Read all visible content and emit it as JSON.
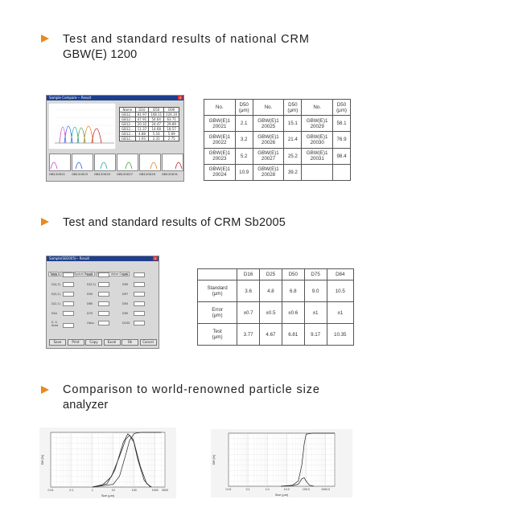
{
  "sections": [
    {
      "title_line1": "Test and standard results of national CRM",
      "title_line2": "GBW(E) 1200"
    },
    {
      "title_line1": "Test and standard results of CRM Sb2005"
    },
    {
      "title_line1": "Comparison to world-renowned particle size",
      "title_line2": "analyzer"
    }
  ],
  "compare_window": {
    "title": "Sample Compare -- Result",
    "table_headers": [
      "Name",
      "D10",
      "D50",
      "D90"
    ],
    "rows": [
      [
        "GB12...",
        "81.97",
        "108.11",
        "126.10"
      ],
      [
        "GB12...",
        "47.91",
        "54.64",
        "63.71"
      ],
      [
        "GB12...",
        "20.32",
        "24.47",
        "29.89"
      ],
      [
        "GB12...",
        "11.37",
        "14.68",
        "18.57"
      ],
      [
        "GB12...",
        "4.88",
        "5.16",
        "5.69"
      ],
      [
        "GB12...",
        "1.93",
        "2.31",
        "2.75"
      ]
    ],
    "thumbnails": [
      "GB120021",
      "GB120023",
      "GB120025",
      "GB120027",
      "GB120029",
      "GB120031"
    ]
  },
  "gbw_table": {
    "headers": [
      "No.",
      "D50\n(μm)",
      "No.",
      "D50\n(μm)",
      "No.",
      "D50\n(μm)"
    ],
    "rows": [
      [
        "GBW(E)1\n20021",
        "2.1",
        "GBW(E)1\n20025",
        "15.1",
        "GBW(E)1\n20029",
        "58.1"
      ],
      [
        "GBW(E)1\n20022",
        "3.2",
        "GBW(E)1\n20026",
        "21.4",
        "GBW(E)1\n20030",
        "76.9"
      ],
      [
        "GBW(E)1\n20023",
        "5.2",
        "GBW(E)1\n20027",
        "25.2",
        "GBW(E)1\n20031",
        "98.4"
      ],
      [
        "GBW(E)1\n20024",
        "10.9",
        "GBW(E)1\n20028",
        "39.2",
        "",
        ""
      ]
    ]
  },
  "sb_window": {
    "title": "Sample(SB2005)-- Result",
    "tabs": [
      "Table",
      "Graph",
      "Typical Result",
      "Residual, Value Graph"
    ],
    "buttons": [
      "Save",
      "Print",
      "Copy",
      "Excel",
      "Ok",
      "Cancel"
    ],
    "fields": [
      [
        "D10",
        "D25",
        "D75"
      ],
      [
        "D(4,3)",
        "D(3,2)",
        "D90"
      ],
      [
        "D(3,2)",
        "D50",
        "D97"
      ],
      [
        "D(2,1)",
        "D60",
        "D50"
      ],
      [
        "SSA",
        "D70",
        "D90"
      ],
      [
        "S. S. Area",
        "Obsc.",
        "D100"
      ]
    ]
  },
  "sb_table": {
    "headers": [
      "",
      "D16",
      "D25",
      "D50",
      "D75",
      "D84"
    ],
    "rows": [
      [
        "Standard\n(μm)",
        "3.6",
        "4.8",
        "6.8",
        "9.0",
        "10.5"
      ],
      [
        "Error\n(μm)",
        "±0.7",
        "±0.5",
        "±0.6",
        "±1",
        "±1"
      ],
      [
        "Test\n(μm)",
        "3.77",
        "4.67",
        "6.81",
        "9.17",
        "10.35"
      ]
    ]
  },
  "chart_data": [
    {
      "type": "line",
      "title": "",
      "xlabel": "Size (μm)",
      "ylabel": "Diff (%)",
      "x_log": true,
      "xlim": [
        0.01,
        3000
      ],
      "ylim": [
        0,
        8
      ],
      "y2lim": [
        0,
        100
      ],
      "xticks": [
        "0.01",
        "0.1",
        "1",
        "10",
        "100",
        "1000",
        "3000"
      ],
      "series": [
        {
          "values": [
            [
              1,
              0
            ],
            [
              3,
              0.3
            ],
            [
              8,
              1.5
            ],
            [
              20,
              4.5
            ],
            [
              40,
              7.0
            ],
            [
              60,
              7.6
            ],
            [
              100,
              6.5
            ],
            [
              200,
              3.0
            ],
            [
              400,
              0.5
            ],
            [
              700,
              0
            ]
          ]
        },
        {
          "values": [
            [
              1,
              0
            ],
            [
              5,
              0.5
            ],
            [
              12,
              2.5
            ],
            [
              30,
              6.5
            ],
            [
              50,
              7.8
            ],
            [
              90,
              7.0
            ],
            [
              150,
              4.0
            ],
            [
              300,
              1.0
            ],
            [
              600,
              0
            ]
          ]
        }
      ]
    },
    {
      "type": "line",
      "xlabel": "Size (μm)",
      "ylabel": "Diff (%)",
      "x_log": true,
      "xlim": [
        0.01,
        3000
      ],
      "ylim": [
        0,
        100
      ],
      "xticks": [
        "0.01",
        "0.1",
        "1.0",
        "10.0",
        "100.0",
        "1000.0"
      ]
    }
  ]
}
